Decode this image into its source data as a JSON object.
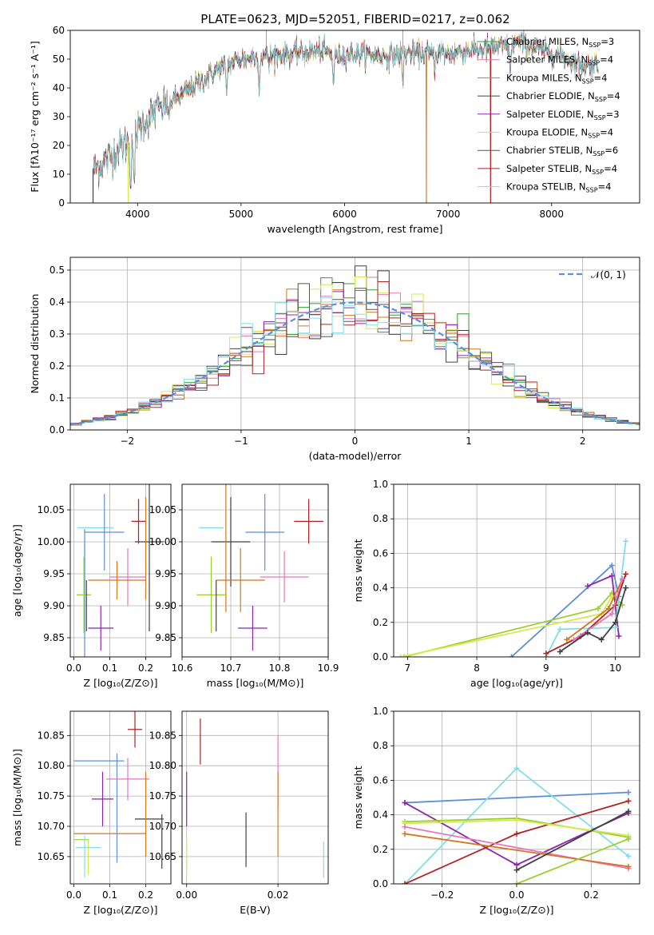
{
  "page_title": "PLATE=0623, MJD=52051, FIBERID=0217, z=0.062",
  "colors": {
    "cm": "#2ca02c",
    "sm": "#e377c2",
    "km": "#d4761e",
    "ce": "#404040",
    "se": "#8e24aa",
    "ke": "#d7e84c",
    "cs": "#555555",
    "ss": "#b22222",
    "ks": "#80deea",
    "gauss": "#5b8fd9",
    "blue": "#5b8fd9",
    "olive": "#9acd32",
    "orange": "#e07b30"
  },
  "chart_data": [
    {
      "id": "spectrum",
      "type": "line",
      "title": "PLATE=0623, MJD=52051, FIBERID=0217, z=0.062",
      "xlabel": "wavelength [Angstrom, rest frame]",
      "ylabel": "Flux [fλ10⁻¹⁷ erg cm⁻² s⁻¹ A⁻¹]",
      "xlim": [
        3350,
        8850
      ],
      "ylim": [
        0,
        60
      ],
      "xticks": [
        4000,
        5000,
        6000,
        7000,
        8000
      ],
      "yticks": [
        0,
        10,
        20,
        30,
        40,
        50,
        60
      ],
      "grid": false,
      "legend_position": "top-right",
      "series": [
        {
          "name": "Chabrier MILES, N",
          "sub": "SSP",
          "tail": "=3",
          "color_key": "cm"
        },
        {
          "name": "Salpeter MILES, N",
          "sub": "SSP",
          "tail": "=4",
          "color_key": "sm"
        },
        {
          "name": "Kroupa MILES, N",
          "sub": "SSP",
          "tail": "=4",
          "color_key": "km"
        },
        {
          "name": "Chabrier ELODIE, N",
          "sub": "SSP",
          "tail": "=4",
          "color_key": "ce"
        },
        {
          "name": "Salpeter ELODIE, N",
          "sub": "SSP",
          "tail": "=3",
          "color_key": "se"
        },
        {
          "name": "Kroupa ELODIE, N",
          "sub": "SSP",
          "tail": "=4",
          "color_key": "ke"
        },
        {
          "name": "Chabrier STELIB, N",
          "sub": "SSP",
          "tail": "=6",
          "color_key": "cs"
        },
        {
          "name": "Salpeter STELIB, N",
          "sub": "SSP",
          "tail": "=4",
          "color_key": "ss"
        },
        {
          "name": "Kroupa STELIB, N",
          "sub": "SSP",
          "tail": "=4",
          "color_key": "ks"
        }
      ],
      "continuum": [
        [
          3580,
          12
        ],
        [
          3700,
          15
        ],
        [
          3850,
          20
        ],
        [
          3950,
          22
        ],
        [
          4050,
          28
        ],
        [
          4200,
          33
        ],
        [
          4400,
          37
        ],
        [
          4600,
          42
        ],
        [
          4800,
          47
        ],
        [
          5000,
          50
        ],
        [
          5200,
          51
        ],
        [
          5500,
          52
        ],
        [
          5800,
          53
        ],
        [
          5900,
          51
        ],
        [
          6100,
          52
        ],
        [
          6400,
          51
        ],
        [
          6600,
          52
        ],
        [
          6800,
          52
        ],
        [
          7000,
          52
        ],
        [
          7200,
          53
        ],
        [
          7500,
          54
        ],
        [
          7700,
          56
        ],
        [
          7900,
          53
        ],
        [
          8100,
          51
        ],
        [
          8300,
          48
        ],
        [
          8450,
          48
        ]
      ],
      "dips": [
        [
          3933,
          4
        ],
        [
          3968,
          6
        ],
        [
          4102,
          25
        ],
        [
          4227,
          32
        ],
        [
          4304,
          28
        ],
        [
          4861,
          37
        ],
        [
          5175,
          38
        ],
        [
          5270,
          46
        ],
        [
          5892,
          40
        ],
        [
          6563,
          40
        ],
        [
          6870,
          44
        ],
        [
          7600,
          44
        ]
      ],
      "spikes": [
        [
          5243,
          60
        ],
        [
          6563,
          60
        ],
        [
          6700,
          54
        ]
      ],
      "drops": [
        [
          3570,
          "ce"
        ],
        [
          3910,
          "ke"
        ],
        [
          6790,
          "km"
        ],
        [
          7410,
          "ss"
        ]
      ]
    },
    {
      "id": "residuals",
      "type": "line",
      "xlabel": "(data-model)/error",
      "ylabel": "Normed distribution",
      "xlim": [
        -2.5,
        2.5
      ],
      "ylim": [
        0,
        0.54
      ],
      "xticks": [
        -2,
        -1,
        0,
        1,
        2
      ],
      "yticks": [
        0,
        0.1,
        0.2,
        0.3,
        0.4,
        0.5
      ],
      "grid": true,
      "legend_position": "top-right",
      "legend_label": "𝒩(0, 1)",
      "bin_width": 0.1,
      "bin_start": -2.5,
      "model_series": [
        "cm",
        "sm",
        "km",
        "ce",
        "se",
        "ke",
        "cs",
        "ss",
        "ks"
      ]
    },
    {
      "id": "age-vs-z",
      "type": "scatter",
      "xlabel": "Z [log₁₀(Z/Z⊙)]",
      "ylabel": "age [log₁₀(age/yr)]",
      "xlim": [
        -0.01,
        0.27
      ],
      "ylim": [
        9.82,
        10.09
      ],
      "xticks": [
        0.0,
        0.1,
        0.2
      ],
      "yticks": [
        9.85,
        9.9,
        9.95,
        10.0,
        10.05
      ],
      "grid": true,
      "points": [
        {
          "c": "ks",
          "x": 0.06,
          "xe": 0.05,
          "y": 10.022,
          "ye": 0.0
        },
        {
          "c": "ks",
          "x": 0.03,
          "xe": 0.0,
          "y": 9.93,
          "ye": 0.07
        },
        {
          "c": "blue",
          "x": 0.085,
          "xe": 0.055,
          "y": 10.015,
          "ye": 0.06
        },
        {
          "c": "blue",
          "x": 0.03,
          "xe": 0.0,
          "y": 9.92,
          "ye": 0.1
        },
        {
          "c": "ce",
          "x": 0.21,
          "xe": 0.04,
          "y": 10.0,
          "ye": 0.14
        },
        {
          "c": "km",
          "x": 0.2,
          "xe": 0.0,
          "y": 9.99,
          "ye": 0.08
        },
        {
          "c": "ss",
          "x": 0.18,
          "xe": 0.02,
          "y": 10.032,
          "ye": 0.035
        },
        {
          "c": "sm",
          "x": 0.15,
          "xe": 0.05,
          "y": 9.945,
          "ye": 0.045
        },
        {
          "c": "km",
          "x": 0.12,
          "xe": 0.08,
          "y": 9.94,
          "ye": 0.03
        },
        {
          "c": "olive",
          "x": 0.028,
          "xe": 0.02,
          "y": 9.917,
          "ye": 0.06
        },
        {
          "c": "se",
          "x": 0.075,
          "xe": 0.035,
          "y": 9.865,
          "ye": 0.035
        },
        {
          "c": "ce",
          "x": 0.035,
          "xe": 0.0,
          "y": 9.9,
          "ye": 0.04
        }
      ]
    },
    {
      "id": "age-vs-mass",
      "type": "scatter",
      "xlabel": "mass [log₁₀(M/M⊙)]",
      "ylabel": "",
      "xlim": [
        10.6,
        10.9
      ],
      "ylim": [
        9.82,
        10.09
      ],
      "xticks": [
        10.6,
        10.7,
        10.8,
        10.9
      ],
      "yticks": [
        9.85,
        9.9,
        9.95,
        10.0,
        10.05
      ],
      "grid": true,
      "points": [
        {
          "c": "ks",
          "x": 10.66,
          "xe": 0.025,
          "y": 10.022,
          "ye": 0.0
        },
        {
          "c": "ce",
          "x": 10.7,
          "xe": 0.04,
          "y": 10.0,
          "ye": 0.07
        },
        {
          "c": "km",
          "x": 10.69,
          "xe": 0.0,
          "y": 9.99,
          "ye": 0.1
        },
        {
          "c": "blue",
          "x": 10.77,
          "xe": 0.04,
          "y": 10.015,
          "ye": 0.06
        },
        {
          "c": "ss",
          "x": 10.86,
          "xe": 0.03,
          "y": 10.032,
          "ye": 0.035
        },
        {
          "c": "sm",
          "x": 10.81,
          "xe": 0.05,
          "y": 9.945,
          "ye": 0.04
        },
        {
          "c": "km",
          "x": 10.72,
          "xe": 0.05,
          "y": 9.94,
          "ye": 0.05
        },
        {
          "c": "olive",
          "x": 10.66,
          "xe": 0.03,
          "y": 9.917,
          "ye": 0.06
        },
        {
          "c": "se",
          "x": 10.745,
          "xe": 0.03,
          "y": 9.865,
          "ye": 0.035
        },
        {
          "c": "ce",
          "x": 10.67,
          "xe": 0.0,
          "y": 9.9,
          "ye": 0.04
        }
      ]
    },
    {
      "id": "weight-vs-age",
      "type": "line",
      "xlabel": "age [log₁₀(age/yr)]",
      "ylabel": "mass weight",
      "xlim": [
        6.8,
        10.35
      ],
      "ylim": [
        0,
        1.0
      ],
      "xticks": [
        7,
        8,
        9,
        10
      ],
      "yticks": [
        0.0,
        0.2,
        0.4,
        0.6,
        0.8,
        1.0
      ],
      "grid": true,
      "series": [
        {
          "c": "blue",
          "x": [
            8.5,
            9.95,
            10.05
          ],
          "y": [
            0.0,
            0.53,
            0.35
          ]
        },
        {
          "c": "olive",
          "x": [
            6.95,
            9.75,
            9.95,
            10.1
          ],
          "y": [
            0.0,
            0.28,
            0.37,
            0.3
          ]
        },
        {
          "c": "ke",
          "x": [
            6.9,
            9.8,
            9.95,
            10.05
          ],
          "y": [
            0.0,
            0.25,
            0.35,
            0.3
          ]
        },
        {
          "c": "se",
          "x": [
            9.6,
            9.95,
            10.05
          ],
          "y": [
            0.41,
            0.47,
            0.12
          ]
        },
        {
          "c": "ks",
          "x": [
            9.0,
            9.2,
            10.0,
            10.15
          ],
          "y": [
            0.0,
            0.16,
            0.17,
            0.67
          ]
        },
        {
          "c": "ss",
          "x": [
            9.0,
            9.5,
            10.0,
            10.15
          ],
          "y": [
            0.02,
            0.12,
            0.3,
            0.48
          ]
        },
        {
          "c": "km",
          "x": [
            9.3,
            9.9,
            10.1
          ],
          "y": [
            0.1,
            0.28,
            0.45
          ]
        },
        {
          "c": "sm",
          "x": [
            9.4,
            9.95,
            10.1
          ],
          "y": [
            0.1,
            0.25,
            0.45
          ]
        },
        {
          "c": "ce",
          "x": [
            9.2,
            9.6,
            9.8,
            10.0,
            10.15
          ],
          "y": [
            0.03,
            0.14,
            0.1,
            0.2,
            0.4
          ]
        }
      ]
    },
    {
      "id": "mass-vs-z",
      "type": "scatter",
      "xlabel": "Z [log₁₀(Z/Z⊙)]",
      "ylabel": "mass [log₁₀(M/M⊙)]",
      "xlim": [
        -0.01,
        0.27
      ],
      "ylim": [
        10.605,
        10.89
      ],
      "xticks": [
        0.0,
        0.1,
        0.2
      ],
      "yticks": [
        10.65,
        10.7,
        10.75,
        10.8,
        10.85
      ],
      "grid": true,
      "points": [
        {
          "c": "ss",
          "x": 0.17,
          "xe": 0.02,
          "y": 10.86,
          "ye": 0.03
        },
        {
          "c": "blue",
          "x": 0.07,
          "xe": 0.07,
          "y": 10.808,
          "ye": 0.0
        },
        {
          "c": "blue",
          "x": 0.12,
          "xe": 0.0,
          "y": 10.73,
          "ye": 0.09
        },
        {
          "c": "sm",
          "x": 0.15,
          "xe": 0.06,
          "y": 10.778,
          "ye": 0.035
        },
        {
          "c": "se",
          "x": 0.08,
          "xe": 0.03,
          "y": 10.745,
          "ye": 0.045
        },
        {
          "c": "ce",
          "x": 0.21,
          "xe": 0.04,
          "y": 10.712,
          "ye": 0.0
        },
        {
          "c": "ce",
          "x": 0.245,
          "xe": 0.0,
          "y": 10.675,
          "ye": 0.045
        },
        {
          "c": "km",
          "x": 0.1,
          "xe": 0.1,
          "y": 10.688,
          "ye": 0.0
        },
        {
          "c": "km",
          "x": 0.2,
          "xe": 0.0,
          "y": 10.72,
          "ye": 0.07
        },
        {
          "c": "olive",
          "x": 0.02,
          "xe": 0.02,
          "y": 10.678,
          "ye": 0.0
        },
        {
          "c": "ks",
          "x": 0.04,
          "xe": 0.035,
          "y": 10.665,
          "ye": 0.0
        },
        {
          "c": "ks",
          "x": 0.03,
          "xe": 0.0,
          "y": 10.65,
          "ye": 0.035
        },
        {
          "c": "ke",
          "x": 0.04,
          "xe": 0.0,
          "y": 10.65,
          "ye": 0.03
        }
      ]
    },
    {
      "id": "mass-vs-ebv",
      "type": "scatter",
      "xlabel": "E(B-V)",
      "ylabel": "",
      "xlim": [
        -0.001,
        0.031
      ],
      "ylim": [
        10.605,
        10.89
      ],
      "xticks": [
        0.0,
        0.02
      ],
      "xticklabels": [
        "0.00",
        "0.02"
      ],
      "yticks": [
        10.65,
        10.7,
        10.75,
        10.8,
        10.85
      ],
      "grid": true,
      "points": [
        {
          "c": "ss",
          "x": 0.003,
          "xe": 0.0,
          "y": 10.84,
          "ye": 0.038
        },
        {
          "c": "se",
          "x": 0.0,
          "xe": 0.0,
          "y": 10.745,
          "ye": 0.045
        },
        {
          "c": "sm",
          "x": 0.02,
          "xe": 0.0,
          "y": 10.79,
          "ye": 0.06
        },
        {
          "c": "km",
          "x": 0.02,
          "xe": 0.0,
          "y": 10.72,
          "ye": 0.07
        },
        {
          "c": "ce",
          "x": 0.013,
          "xe": 0.0,
          "y": 10.678,
          "ye": 0.045
        },
        {
          "c": "ke",
          "x": 0.0,
          "xe": 0.0,
          "y": 10.65,
          "ye": 0.03
        },
        {
          "c": "ks",
          "x": 0.03,
          "xe": 0.0,
          "y": 10.645,
          "ye": 0.03
        }
      ]
    },
    {
      "id": "weight-vs-z",
      "type": "line",
      "xlabel": "Z [log₁₀(Z/Z⊙)]",
      "ylabel": "mass weight",
      "xlim": [
        -0.33,
        0.33
      ],
      "ylim": [
        0,
        1.0
      ],
      "xticks": [
        -0.2,
        0.0,
        0.2
      ],
      "xticklabels": [
        "−0.2",
        "0.0",
        "0.2"
      ],
      "yticks": [
        0.0,
        0.2,
        0.4,
        0.6,
        0.8,
        1.0
      ],
      "grid": true,
      "series": [
        {
          "c": "blue",
          "x": [
            -0.3,
            0.3
          ],
          "y": [
            0.47,
            0.53
          ]
        },
        {
          "c": "ks",
          "x": [
            -0.3,
            0.0,
            0.3
          ],
          "y": [
            0.0,
            0.67,
            0.16
          ]
        },
        {
          "c": "se",
          "x": [
            -0.3,
            0.0,
            0.3
          ],
          "y": [
            0.47,
            0.11,
            0.41
          ]
        },
        {
          "c": "ss",
          "x": [
            -0.3,
            0.0,
            0.3
          ],
          "y": [
            0.0,
            0.29,
            0.48
          ]
        },
        {
          "c": "olive",
          "x": [
            -0.3,
            0.0,
            0.3
          ],
          "y": [
            0.36,
            0.38,
            0.27
          ]
        },
        {
          "c": "ke",
          "x": [
            -0.3,
            0.0,
            0.3
          ],
          "y": [
            0.35,
            0.37,
            0.28
          ]
        },
        {
          "c": "sm",
          "x": [
            -0.3,
            0.3
          ],
          "y": [
            0.33,
            0.09
          ]
        },
        {
          "c": "km",
          "x": [
            -0.3,
            0.3
          ],
          "y": [
            0.29,
            0.1
          ]
        },
        {
          "c": "ce",
          "x": [
            0.0,
            0.3
          ],
          "y": [
            0.08,
            0.42
          ]
        },
        {
          "c": "olive",
          "x": [
            0.0,
            0.3
          ],
          "y": [
            0.0,
            0.26
          ]
        }
      ]
    }
  ]
}
